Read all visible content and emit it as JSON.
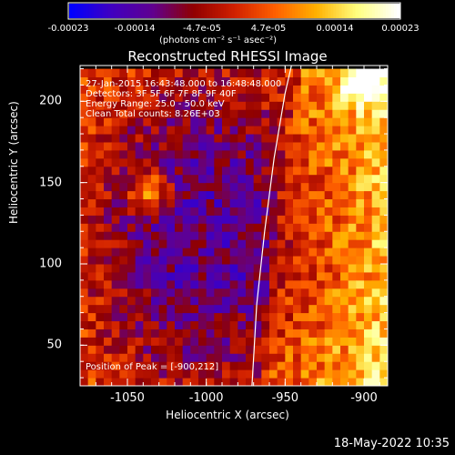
{
  "colorbar": {
    "ticks": [
      "-0.00023",
      "-0.00014",
      "-4.7e-05",
      "4.7e-05",
      "0.00014",
      "0.00023"
    ],
    "units": "(photons cm⁻² s⁻¹ asec⁻²)"
  },
  "header": {
    "title": "Reconstructed RHESSI Image"
  },
  "overlay": {
    "line1": "27-Jan-2015 16:43:48.000 to 16:48:48.000",
    "line2": "Detectors: 3F 5F 6F 7F 8F 9F 40F",
    "line3": "Energy Range: 25.0 - 50.0 keV",
    "line4": "Clean    Total counts: 8.26E+03",
    "peak": "Position of Peak = [-900,212]"
  },
  "footer": {
    "date": "18-May-2022 10:35"
  },
  "chart_data": {
    "type": "heatmap",
    "title": "Reconstructed RHESSI Image",
    "xlabel": "Heliocentric X (arcsec)",
    "ylabel": "Heliocentric Y (arcsec)",
    "xlim": [
      -1080,
      -885
    ],
    "ylim": [
      25,
      222
    ],
    "xticks": [
      "-1050",
      "-1000",
      "-950",
      "-900"
    ],
    "yticks": [
      "50",
      "100",
      "150",
      "200"
    ],
    "colorbar_range": [
      -0.00023,
      0.00023
    ],
    "colormap": [
      "#0000ff",
      "#4000c0",
      "#600090",
      "#900000",
      "#d02000",
      "#ff6000",
      "#ffb000",
      "#ffff80",
      "#ffffff"
    ],
    "features": [
      {
        "type": "source",
        "x": -1035,
        "y": 145,
        "level": 0.00021
      },
      {
        "type": "source",
        "x": -900,
        "y": 212,
        "level": 0.00023
      }
    ],
    "limb_curve": [
      {
        "x": -971,
        "y": 25
      },
      {
        "x": -968,
        "y": 75
      },
      {
        "x": -963,
        "y": 120
      },
      {
        "x": -957,
        "y": 165
      },
      {
        "x": -950,
        "y": 205
      },
      {
        "x": -946,
        "y": 222
      }
    ]
  }
}
